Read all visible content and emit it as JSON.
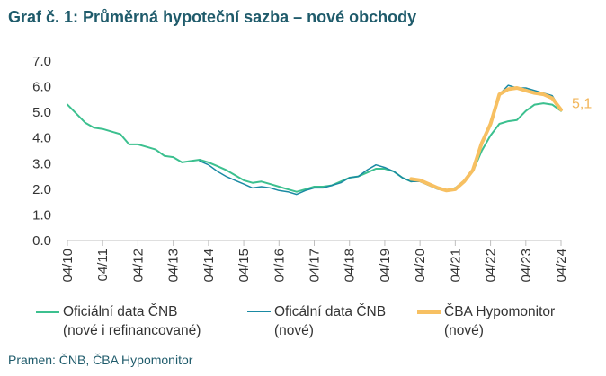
{
  "title": "Graf č. 1: Průměrná hypoteční sazba – nové obchody",
  "source": "Pramen: ČNB, ČBA Hypomonitor",
  "legend": [
    {
      "line1": "Oficiální data ČNB",
      "line2": "(nové i refinancované)",
      "color": "#3cc08f"
    },
    {
      "line1": "Oficální data ČNB",
      "line2": "(nové)",
      "color": "#1a8aa3"
    },
    {
      "line1": "ČBA Hypomonitor",
      "line2": "(nové)",
      "color": "#f7c062"
    }
  ],
  "chart_data": {
    "type": "line",
    "title": "Graf č. 1: Průměrná hypoteční sazba – nové obchody",
    "xlabel": "",
    "ylabel": "",
    "ylim": [
      0,
      7
    ],
    "y_ticks": [
      "0.0",
      "1.0",
      "2.0",
      "3.0",
      "4.0",
      "5.0",
      "6.0",
      "7.0"
    ],
    "x_ticks": [
      "04/10",
      "04/11",
      "04/12",
      "04/13",
      "04/14",
      "04/15",
      "04/16",
      "04/17",
      "04/18",
      "04/19",
      "04/20",
      "04/21",
      "04/22",
      "04/23",
      "04/24"
    ],
    "end_label": "5,1",
    "series": [
      {
        "name": "Oficiální data ČNB (nové i refinancované)",
        "color": "#3cc08f",
        "points": [
          [
            2010.25,
            5.3
          ],
          [
            2010.5,
            4.95
          ],
          [
            2010.75,
            4.6
          ],
          [
            2011.0,
            4.4
          ],
          [
            2011.25,
            4.35
          ],
          [
            2011.5,
            4.25
          ],
          [
            2011.75,
            4.15
          ],
          [
            2012.0,
            3.75
          ],
          [
            2012.25,
            3.75
          ],
          [
            2012.5,
            3.65
          ],
          [
            2012.75,
            3.55
          ],
          [
            2013.0,
            3.3
          ],
          [
            2013.25,
            3.25
          ],
          [
            2013.5,
            3.05
          ],
          [
            2013.75,
            3.1
          ],
          [
            2014.0,
            3.15
          ],
          [
            2014.25,
            3.05
          ],
          [
            2014.5,
            2.9
          ],
          [
            2014.75,
            2.75
          ],
          [
            2015.0,
            2.55
          ],
          [
            2015.25,
            2.35
          ],
          [
            2015.5,
            2.25
          ],
          [
            2015.75,
            2.3
          ],
          [
            2016.0,
            2.2
          ],
          [
            2016.25,
            2.1
          ],
          [
            2016.5,
            2.0
          ],
          [
            2016.75,
            1.9
          ],
          [
            2017.0,
            2.0
          ],
          [
            2017.25,
            2.1
          ],
          [
            2017.5,
            2.1
          ],
          [
            2017.75,
            2.15
          ],
          [
            2018.0,
            2.3
          ],
          [
            2018.25,
            2.45
          ],
          [
            2018.5,
            2.5
          ],
          [
            2018.75,
            2.65
          ],
          [
            2019.0,
            2.8
          ],
          [
            2019.25,
            2.8
          ],
          [
            2019.5,
            2.7
          ],
          [
            2019.75,
            2.45
          ],
          [
            2020.0,
            2.3
          ],
          [
            2020.25,
            2.35
          ],
          [
            2020.5,
            2.2
          ],
          [
            2020.75,
            2.05
          ],
          [
            2021.0,
            1.95
          ],
          [
            2021.25,
            2.05
          ],
          [
            2021.5,
            2.3
          ],
          [
            2021.75,
            2.7
          ],
          [
            2022.0,
            3.5
          ],
          [
            2022.25,
            4.1
          ],
          [
            2022.5,
            4.55
          ],
          [
            2022.75,
            4.65
          ],
          [
            2023.0,
            4.7
          ],
          [
            2023.25,
            5.05
          ],
          [
            2023.5,
            5.3
          ],
          [
            2023.75,
            5.35
          ],
          [
            2024.0,
            5.3
          ],
          [
            2024.25,
            5.05
          ]
        ]
      },
      {
        "name": "Oficální data ČNB (nové)",
        "color": "#1a8aa3",
        "points": [
          [
            2014.0,
            3.1
          ],
          [
            2014.25,
            2.95
          ],
          [
            2014.5,
            2.7
          ],
          [
            2014.75,
            2.5
          ],
          [
            2015.0,
            2.35
          ],
          [
            2015.25,
            2.2
          ],
          [
            2015.5,
            2.05
          ],
          [
            2015.75,
            2.1
          ],
          [
            2016.0,
            2.05
          ],
          [
            2016.25,
            1.95
          ],
          [
            2016.5,
            1.9
          ],
          [
            2016.75,
            1.8
          ],
          [
            2017.0,
            1.95
          ],
          [
            2017.25,
            2.05
          ],
          [
            2017.5,
            2.05
          ],
          [
            2017.75,
            2.15
          ],
          [
            2018.0,
            2.25
          ],
          [
            2018.25,
            2.45
          ],
          [
            2018.5,
            2.5
          ],
          [
            2018.75,
            2.75
          ],
          [
            2019.0,
            2.95
          ],
          [
            2019.25,
            2.85
          ],
          [
            2019.5,
            2.7
          ],
          [
            2019.75,
            2.45
          ],
          [
            2020.0,
            2.3
          ],
          [
            2020.25,
            2.3
          ],
          [
            2020.5,
            2.15
          ],
          [
            2020.75,
            2.0
          ],
          [
            2021.0,
            1.95
          ],
          [
            2021.25,
            2.05
          ],
          [
            2021.5,
            2.35
          ],
          [
            2021.75,
            2.8
          ],
          [
            2022.0,
            3.8
          ],
          [
            2022.25,
            4.6
          ],
          [
            2022.5,
            5.7
          ],
          [
            2022.75,
            6.05
          ],
          [
            2023.0,
            5.95
          ],
          [
            2023.25,
            5.95
          ],
          [
            2023.5,
            5.85
          ],
          [
            2023.75,
            5.75
          ],
          [
            2024.0,
            5.65
          ],
          [
            2024.25,
            5.1
          ]
        ]
      },
      {
        "name": "ČBA Hypomonitor (nové)",
        "color": "#f7c062",
        "points": [
          [
            2020.0,
            2.4
          ],
          [
            2020.25,
            2.35
          ],
          [
            2020.5,
            2.2
          ],
          [
            2020.75,
            2.05
          ],
          [
            2021.0,
            1.95
          ],
          [
            2021.25,
            2.0
          ],
          [
            2021.5,
            2.3
          ],
          [
            2021.75,
            2.75
          ],
          [
            2022.0,
            3.8
          ],
          [
            2022.25,
            4.55
          ],
          [
            2022.5,
            5.7
          ],
          [
            2022.75,
            5.9
          ],
          [
            2023.0,
            5.95
          ],
          [
            2023.25,
            5.85
          ],
          [
            2023.5,
            5.75
          ],
          [
            2023.75,
            5.7
          ],
          [
            2024.0,
            5.55
          ],
          [
            2024.25,
            5.1
          ]
        ]
      }
    ]
  }
}
